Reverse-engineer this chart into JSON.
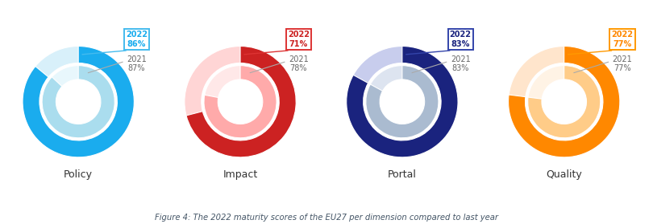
{
  "charts": [
    {
      "title": "Policy",
      "val_2022": 86,
      "val_2021": 87,
      "color_2022": "#1AACEE",
      "color_2021": "#AADDEE",
      "color_empty_2022": "#D8F0FA",
      "color_empty_2021": "#E8F7FC",
      "ann_border_2022": "#44BBEE",
      "ann_text_2022": "#1AACEE"
    },
    {
      "title": "Impact",
      "val_2022": 71,
      "val_2021": 78,
      "color_2022": "#CC2222",
      "color_2021": "#FFAAAA",
      "color_empty_2022": "#FFD5D5",
      "color_empty_2021": "#FFE8E8",
      "ann_border_2022": "#DD3333",
      "ann_text_2022": "#CC2222"
    },
    {
      "title": "Portal",
      "val_2022": 83,
      "val_2021": 83,
      "color_2022": "#1A237E",
      "color_2021": "#AABBD0",
      "color_empty_2022": "#C8CDED",
      "color_empty_2021": "#DDE4F0",
      "ann_border_2022": "#3344AA",
      "ann_text_2022": "#1A237E"
    },
    {
      "title": "Quality",
      "val_2022": 77,
      "val_2021": 77,
      "color_2022": "#FF8800",
      "color_2021": "#FFCC88",
      "color_empty_2022": "#FFE5CC",
      "color_empty_2021": "#FFF3E5",
      "ann_border_2022": "#FF9900",
      "ann_text_2022": "#FF8800"
    }
  ],
  "caption": "Figure 4: The 2022 maturity scores of the EU27 per dimension compared to last year",
  "bg_color": "#FFFFFF"
}
